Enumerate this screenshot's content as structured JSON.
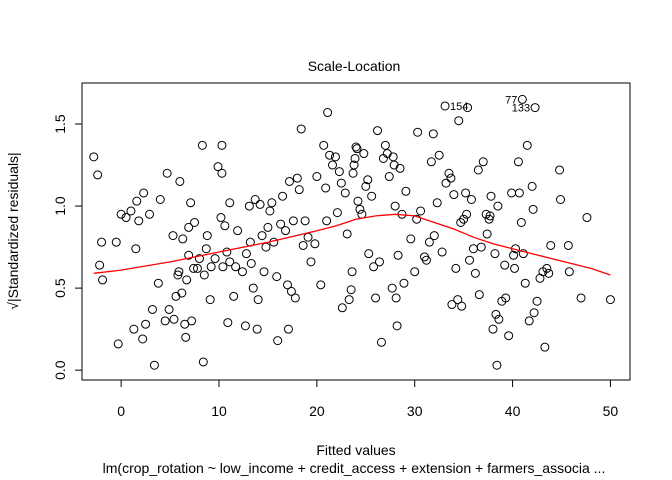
{
  "chart_data": {
    "type": "scatter",
    "title": "Scale-Location",
    "xlabel": "Fitted values",
    "ylabel": "√|Standardized residuals|",
    "subtitle": "lm(crop_rotation ~ low_income + credit_access + extension + farmers_associa ...",
    "xlim": [
      -4,
      52
    ],
    "ylim": [
      -0.06,
      1.75
    ],
    "x_ticks": [
      0,
      10,
      20,
      30,
      40,
      50
    ],
    "y_ticks": [
      0.0,
      0.5,
      1.0,
      1.5
    ],
    "grid": false,
    "colors": {
      "points": "#000000",
      "smoother": "#ff0000"
    },
    "points": [
      [
        -2.8,
        1.3
      ],
      [
        -2.4,
        1.19
      ],
      [
        -2.2,
        0.64
      ],
      [
        -2,
        0.78
      ],
      [
        -1.9,
        0.55
      ],
      [
        -0.5,
        0.78
      ],
      [
        -0.3,
        0.16
      ],
      [
        0,
        0.95
      ],
      [
        0.5,
        0.93
      ],
      [
        1,
        0.97
      ],
      [
        1.3,
        0.25
      ],
      [
        1.5,
        0.74
      ],
      [
        1.6,
        1.03
      ],
      [
        1.8,
        0.91
      ],
      [
        2.2,
        0.19
      ],
      [
        2.3,
        1.08
      ],
      [
        2.5,
        0.28
      ],
      [
        2.9,
        0.95
      ],
      [
        3.2,
        0.37
      ],
      [
        3.4,
        0.03
      ],
      [
        3.8,
        0.53
      ],
      [
        4,
        1.04
      ],
      [
        4.5,
        0.3
      ],
      [
        4.7,
        1.2
      ],
      [
        4.9,
        0.37
      ],
      [
        5.3,
        0.82
      ],
      [
        5.4,
        0.31
      ],
      [
        5.6,
        0.45
      ],
      [
        5.8,
        0.58
      ],
      [
        5.9,
        0.6
      ],
      [
        6,
        1.15
      ],
      [
        6.2,
        0.47
      ],
      [
        6.3,
        0.8
      ],
      [
        6.5,
        0.28
      ],
      [
        6.6,
        0.2
      ],
      [
        6.7,
        0.55
      ],
      [
        6.9,
        0.87
      ],
      [
        6.9,
        0.7
      ],
      [
        7.1,
        1.02
      ],
      [
        7.2,
        0.3
      ],
      [
        7.4,
        0.62
      ],
      [
        7.5,
        0.9
      ],
      [
        7.8,
        0.62
      ],
      [
        8,
        0.68
      ],
      [
        8.3,
        1.37
      ],
      [
        8.4,
        0.05
      ],
      [
        8.5,
        0.58
      ],
      [
        8.7,
        0.74
      ],
      [
        8.8,
        0.82
      ],
      [
        9.1,
        0.43
      ],
      [
        9.2,
        0.63
      ],
      [
        9.6,
        0.68
      ],
      [
        9.9,
        1.24
      ],
      [
        10.2,
        0.93
      ],
      [
        10.3,
        1.37
      ],
      [
        10.3,
        1.2
      ],
      [
        10.4,
        0.63
      ],
      [
        10.6,
        0.88
      ],
      [
        10.8,
        0.72
      ],
      [
        10.9,
        0.29
      ],
      [
        11.1,
        1.02
      ],
      [
        11.1,
        0.66
      ],
      [
        11.5,
        0.45
      ],
      [
        11.7,
        0.63
      ],
      [
        11.9,
        0.85
      ],
      [
        12.4,
        0.6
      ],
      [
        12.7,
        0.27
      ],
      [
        12.8,
        0.71
      ],
      [
        13.1,
        1.0
      ],
      [
        13.2,
        0.78
      ],
      [
        13.3,
        0.65
      ],
      [
        13.5,
        0.5
      ],
      [
        13.7,
        1.04
      ],
      [
        13.9,
        0.25
      ],
      [
        14,
        0.43
      ],
      [
        14.2,
        1.01
      ],
      [
        14.4,
        0.82
      ],
      [
        14.6,
        0.6
      ],
      [
        14.8,
        0.75
      ],
      [
        15,
        0.87
      ],
      [
        15.2,
        0.97
      ],
      [
        15.4,
        1.02
      ],
      [
        15.6,
        0.78
      ],
      [
        15.9,
        0.57
      ],
      [
        16,
        0.18
      ],
      [
        16.3,
        0.89
      ],
      [
        16.5,
        1.06
      ],
      [
        16.8,
        0.85
      ],
      [
        17,
        0.52
      ],
      [
        17.1,
        0.25
      ],
      [
        17.2,
        1.15
      ],
      [
        17.4,
        0.48
      ],
      [
        17.6,
        0.91
      ],
      [
        17.8,
        0.44
      ],
      [
        18,
        1.17
      ],
      [
        18.2,
        1.1
      ],
      [
        18.4,
        1.47
      ],
      [
        18.6,
        0.76
      ],
      [
        18.8,
        0.91
      ],
      [
        19.1,
        0.81
      ],
      [
        19.4,
        0.66
      ],
      [
        19.8,
        0.77
      ],
      [
        20,
        1.18
      ],
      [
        20.4,
        0.52
      ],
      [
        20.7,
        1.37
      ],
      [
        20.9,
        1.11
      ],
      [
        21,
        0.91
      ],
      [
        21.1,
        1.57
      ],
      [
        21.3,
        1.31
      ],
      [
        21.6,
        1.25
      ],
      [
        21.9,
        1.3
      ],
      [
        22.1,
        0.96
      ],
      [
        22.3,
        1.21
      ],
      [
        22.5,
        1.14
      ],
      [
        22.6,
        0.38
      ],
      [
        22.9,
        1.08
      ],
      [
        23.1,
        0.83
      ],
      [
        23.3,
        0.43
      ],
      [
        23.5,
        0.49
      ],
      [
        23.6,
        0.6
      ],
      [
        23.7,
        1.2
      ],
      [
        23.8,
        1.25
      ],
      [
        23.9,
        1.29
      ],
      [
        24,
        1.36
      ],
      [
        24.1,
        1.35
      ],
      [
        24.2,
        1.03
      ],
      [
        24.4,
        0.98
      ],
      [
        24.6,
        0.95
      ],
      [
        24.8,
        1.32
      ],
      [
        25,
        1.12
      ],
      [
        25.2,
        1.16
      ],
      [
        25.3,
        0.71
      ],
      [
        25.6,
        1.06
      ],
      [
        25.8,
        0.63
      ],
      [
        26,
        0.44
      ],
      [
        26.2,
        1.46
      ],
      [
        26.4,
        0.66
      ],
      [
        26.6,
        0.17
      ],
      [
        26.8,
        1.29
      ],
      [
        27,
        1.37
      ],
      [
        27.2,
        1.32
      ],
      [
        27.4,
        1.18
      ],
      [
        27.7,
        0.5
      ],
      [
        27.8,
        1.3
      ],
      [
        27.9,
        1.25
      ],
      [
        28,
        1.0
      ],
      [
        28.1,
        0.44
      ],
      [
        28.2,
        0.27
      ],
      [
        28.3,
        0.7
      ],
      [
        28.5,
        1.23
      ],
      [
        28.7,
        0.95
      ],
      [
        28.9,
        0.53
      ],
      [
        29.1,
        1.09
      ],
      [
        29.6,
        0.8
      ],
      [
        30,
        0.6
      ],
      [
        30.2,
        0.92
      ],
      [
        30.3,
        1.45
      ],
      [
        30.6,
        0.97
      ],
      [
        31,
        0.69
      ],
      [
        31.2,
        0.67
      ],
      [
        31.5,
        0.78
      ],
      [
        31.7,
        1.27
      ],
      [
        31.9,
        1.44
      ],
      [
        32,
        0.82
      ],
      [
        32.3,
        1.02
      ],
      [
        32.5,
        1.31
      ],
      [
        32.8,
        0.72
      ],
      [
        33.1,
        1.61
      ],
      [
        33.2,
        1.14
      ],
      [
        33.5,
        1.2
      ],
      [
        33.7,
        1.17
      ],
      [
        33.8,
        0.4
      ],
      [
        34,
        1.07
      ],
      [
        34.2,
        0.62
      ],
      [
        34.4,
        0.43
      ],
      [
        34.5,
        1.52
      ],
      [
        34.7,
        0.9
      ],
      [
        34.8,
        0.39
      ],
      [
        35,
        0.92
      ],
      [
        35.2,
        1.08
      ],
      [
        35.3,
        0.95
      ],
      [
        35.4,
        1.6
      ],
      [
        35.6,
        0.67
      ],
      [
        35.8,
        1.04
      ],
      [
        36,
        0.74
      ],
      [
        36.2,
        0.59
      ],
      [
        36.5,
        1.22
      ],
      [
        36.6,
        0.46
      ],
      [
        36.8,
        0.75
      ],
      [
        37,
        1.27
      ],
      [
        37.3,
        0.95
      ],
      [
        37.4,
        0.83
      ],
      [
        37.6,
        0.92
      ],
      [
        37.7,
        0.94
      ],
      [
        37.8,
        1.06
      ],
      [
        38,
        0.25
      ],
      [
        38.2,
        0.71
      ],
      [
        38.3,
        0.34
      ],
      [
        38.4,
        0.03
      ],
      [
        38.5,
        1.0
      ],
      [
        38.6,
        0.31
      ],
      [
        38.9,
        0.42
      ],
      [
        39.2,
        0.64
      ],
      [
        39.3,
        0.44
      ],
      [
        39.6,
        0.21
      ],
      [
        39.9,
        1.08
      ],
      [
        40.1,
        0.7
      ],
      [
        40.2,
        0.62
      ],
      [
        40.3,
        0.74
      ],
      [
        40.6,
        1.27
      ],
      [
        40.7,
        1.08
      ],
      [
        40.9,
        0.9
      ],
      [
        41,
        1.65
      ],
      [
        41.1,
        0.71
      ],
      [
        41.3,
        0.53
      ],
      [
        41.5,
        1.37
      ],
      [
        41.7,
        0.3
      ],
      [
        42,
        1.12
      ],
      [
        42.1,
        0.98
      ],
      [
        42.2,
        0.35
      ],
      [
        42.3,
        1.6
      ],
      [
        42.5,
        0.42
      ],
      [
        42.8,
        0.56
      ],
      [
        43.1,
        0.6
      ],
      [
        43.3,
        0.14
      ],
      [
        43.5,
        0.62
      ],
      [
        43.7,
        0.59
      ],
      [
        43.9,
        0.76
      ],
      [
        44.8,
        1.22
      ],
      [
        44.9,
        1.04
      ],
      [
        45.7,
        0.76
      ],
      [
        45.8,
        0.6
      ],
      [
        47,
        0.44
      ],
      [
        47.6,
        0.93
      ],
      [
        50,
        0.43
      ]
    ],
    "smoother": {
      "x": [
        -2.8,
        0,
        5,
        10,
        15,
        20,
        22,
        24,
        26,
        28,
        30,
        32,
        34,
        36,
        38,
        40,
        42,
        44,
        46,
        48,
        50
      ],
      "y": [
        0.59,
        0.61,
        0.66,
        0.72,
        0.78,
        0.85,
        0.88,
        0.92,
        0.94,
        0.95,
        0.94,
        0.9,
        0.86,
        0.81,
        0.77,
        0.74,
        0.71,
        0.68,
        0.65,
        0.62,
        0.58
      ]
    },
    "point_labels": [
      {
        "text": "77",
        "x": 41,
        "y": 1.65,
        "anchor": "end"
      },
      {
        "text": "154",
        "x": 33.1,
        "y": 1.61,
        "anchor": "start"
      },
      {
        "text": "133",
        "x": 42.3,
        "y": 1.6,
        "anchor": "end"
      }
    ]
  }
}
